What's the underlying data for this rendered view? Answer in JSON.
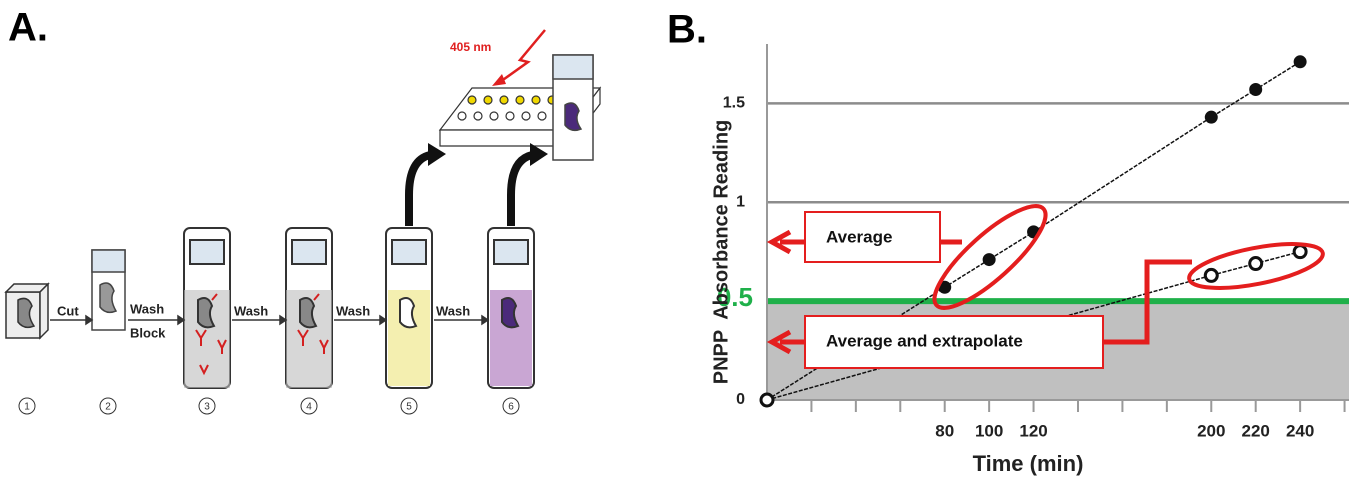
{
  "panel_a": {
    "label": "A.",
    "wavelength": "405 nm",
    "arrows": [
      {
        "label": "Cut"
      },
      {
        "label": "Wash",
        "sublabel": "Block"
      },
      {
        "label": "Wash"
      },
      {
        "label": "Wash"
      },
      {
        "label": "Wash"
      }
    ],
    "steps": [
      "1",
      "2",
      "3",
      "4",
      "5",
      "6"
    ]
  },
  "chart_data": {
    "type": "line",
    "panel_label": "B.",
    "x_label": "Time (min)",
    "y_label": "PNPP  Absorbance Reading",
    "xlim": [
      0,
      262
    ],
    "ylim": [
      0,
      1.8
    ],
    "xticks": [
      80,
      100,
      120,
      200,
      220,
      240
    ],
    "xminorticks": [
      20,
      40,
      60,
      140,
      160,
      180,
      260
    ],
    "yticks": [
      0,
      1,
      1.5
    ],
    "grid": true,
    "threshold": 0.5,
    "threshold_color": "#1fb04a",
    "shade_color": "#c0c0c0",
    "series": [
      {
        "x": [
          0,
          80,
          100,
          120,
          200,
          220,
          240
        ],
        "values": [
          0,
          0.57,
          0.71,
          0.85,
          1.43,
          1.57,
          1.71
        ],
        "marker": "filled",
        "color": "#111111"
      },
      {
        "x": [
          0,
          200,
          220,
          240
        ],
        "values": [
          0,
          0.63,
          0.69,
          0.75
        ],
        "marker": "open",
        "color": "#111111"
      }
    ],
    "annotations": [
      "Average",
      "Average and extrapolate"
    ]
  }
}
